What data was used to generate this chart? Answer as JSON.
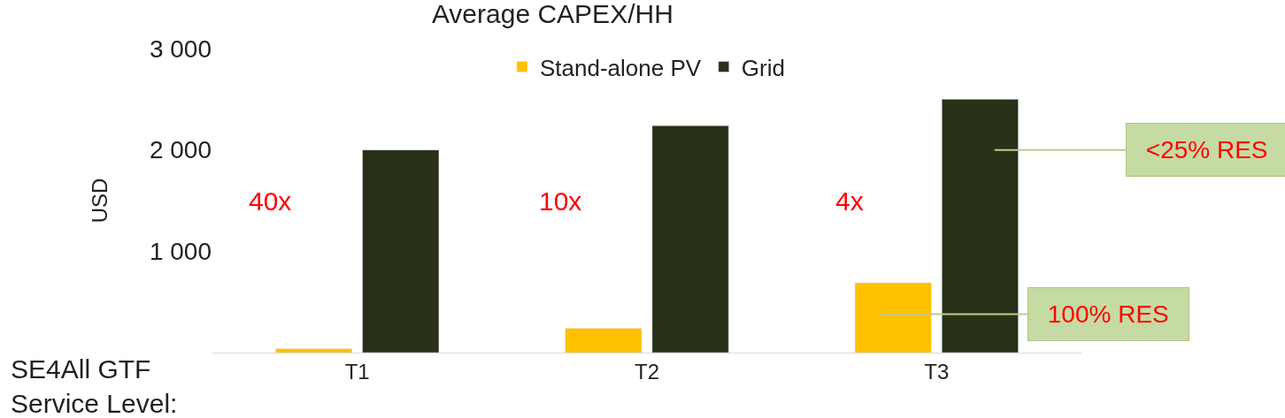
{
  "chart_data": {
    "type": "bar",
    "title": "Average CAPEX/HH",
    "ylabel": "USD",
    "categories": [
      "T1",
      "T2",
      "T3"
    ],
    "series": [
      {
        "name": "Stand-alone PV",
        "color": "#ffc000",
        "values": [
          40,
          240,
          690
        ]
      },
      {
        "name": "Grid",
        "color": "#283018",
        "values": [
          2000,
          2240,
          2500
        ]
      }
    ],
    "ylim": [
      0,
      3000
    ],
    "yticks": [
      {
        "value": 1000,
        "label": "1 000"
      },
      {
        "value": 2000,
        "label": "2 000"
      },
      {
        "value": 3000,
        "label": "3 000"
      }
    ],
    "legend": "top",
    "annotations": [
      "40x",
      "10x",
      "4x",
      "<25% RES",
      "100% RES",
      "SE4All GTF\nService Level:"
    ]
  }
}
